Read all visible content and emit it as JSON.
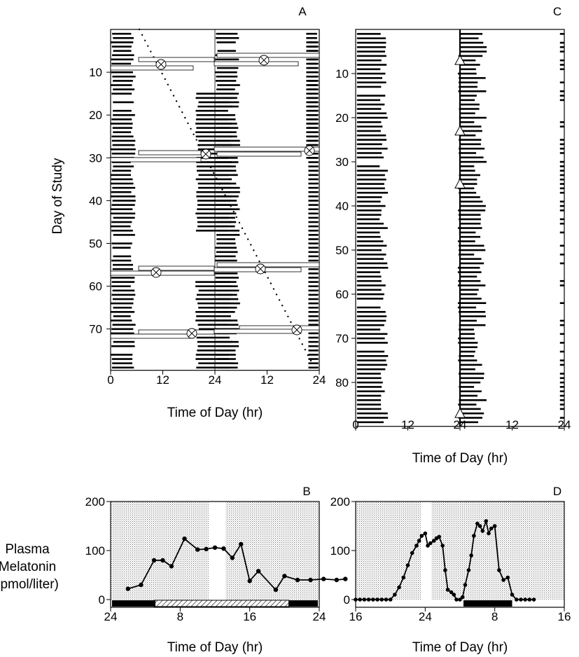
{
  "chart_data": [
    {
      "panel": "A",
      "type": "raster",
      "xlabel": "Time of Day (hr)",
      "ylabel": "Day of Study",
      "xticks": [
        "0",
        "12",
        "24",
        "12",
        "24"
      ],
      "yticks": [
        10,
        20,
        30,
        40,
        50,
        60,
        70
      ],
      "days": 79,
      "marker": "⊗"
    },
    {
      "panel": "C",
      "type": "raster",
      "xlabel": "Time of Day (hr)",
      "xticks": [
        "0",
        "12",
        "24",
        "12",
        "24"
      ],
      "yticks": [
        10,
        20,
        30,
        40,
        50,
        60,
        70,
        80
      ],
      "days": 89,
      "marker": "triangle",
      "triangle_days": [
        7,
        23,
        35,
        87
      ]
    },
    {
      "panel": "B",
      "type": "line",
      "ylabel": "Plasma Melatonin (pmol/liter)",
      "xlabel": "Time of Day (hr)",
      "xticks": [
        "24",
        "8",
        "16",
        "24"
      ],
      "ylim": [
        0,
        200
      ],
      "yticks": [
        "0",
        "100",
        "200"
      ],
      "x": [
        26,
        27.5,
        29,
        30,
        31,
        32.5,
        34,
        35,
        36,
        37,
        38,
        39,
        40,
        41,
        43,
        44,
        45.5,
        47,
        48.5,
        50,
        51
      ],
      "y": [
        22,
        30,
        80,
        80,
        68,
        124,
        102,
        103,
        106,
        104,
        85,
        113,
        38,
        58,
        20,
        48,
        40,
        40,
        42,
        40,
        42
      ]
    },
    {
      "panel": "D",
      "type": "line",
      "xlabel": "Time of Day (hr)",
      "xticks": [
        "16",
        "24",
        "8",
        "16"
      ],
      "ylim": [
        0,
        200
      ],
      "yticks": [
        "0",
        "100",
        "200"
      ],
      "x": [
        16,
        16.5,
        17,
        17.5,
        18,
        18.5,
        19,
        19.5,
        20,
        20.5,
        21,
        21.5,
        22,
        22.5,
        23,
        23.3,
        23.6,
        24,
        24.3,
        24.6,
        25,
        25.3,
        25.6,
        26,
        26.3,
        26.6,
        27,
        27.3,
        27.6,
        28,
        28.3,
        28.6,
        29,
        29.3,
        29.6,
        30,
        30.3,
        30.6,
        31,
        31.3,
        31.6,
        32,
        32.5,
        33,
        33.5,
        34,
        34.5,
        35,
        35.5,
        36,
        36.5
      ],
      "y": [
        0,
        0,
        0,
        0,
        0,
        0,
        0,
        0,
        0,
        10,
        25,
        45,
        70,
        95,
        110,
        120,
        130,
        135,
        110,
        115,
        120,
        125,
        128,
        110,
        60,
        20,
        15,
        10,
        0,
        0,
        5,
        30,
        60,
        90,
        130,
        155,
        150,
        140,
        160,
        135,
        145,
        150,
        60,
        40,
        45,
        10,
        0,
        0,
        0,
        0,
        0
      ]
    }
  ]
}
